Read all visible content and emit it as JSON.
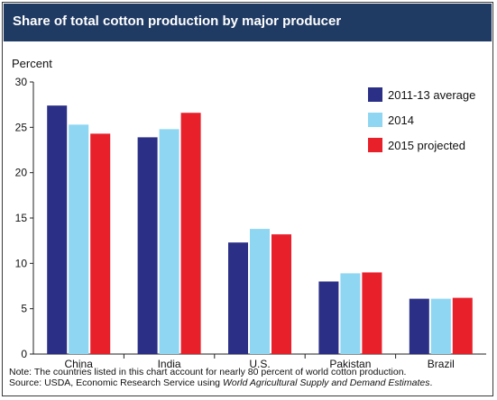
{
  "chart_data": {
    "type": "bar",
    "title": "Share of total cotton production by major producer",
    "ylabel": "Percent",
    "xlabel": "",
    "ylim": [
      0,
      30
    ],
    "yticks": [
      0,
      5,
      10,
      15,
      20,
      25,
      30
    ],
    "grid": false,
    "legend_position": "top-right",
    "categories": [
      "China",
      "India",
      "U.S.",
      "Pakistan",
      "Brazil"
    ],
    "series": [
      {
        "name": "2011-13 average",
        "color": "#2b2f86",
        "values": [
          27.4,
          23.9,
          12.3,
          8.0,
          6.1
        ]
      },
      {
        "name": "2014",
        "color": "#8fd6f2",
        "values": [
          25.3,
          24.8,
          13.8,
          8.9,
          6.1
        ]
      },
      {
        "name": "2015 projected",
        "color": "#e8202a",
        "values": [
          24.3,
          26.6,
          13.2,
          9.0,
          6.2
        ]
      }
    ]
  },
  "footer": {
    "note": "Note: The countries listed in this chart account for nearly 80 percent of world cotton production.",
    "source_prefix": "Source:  USDA, Economic Research Service using ",
    "source_title": "World Agricultural Supply and Demand Estimates",
    "source_suffix": "."
  }
}
